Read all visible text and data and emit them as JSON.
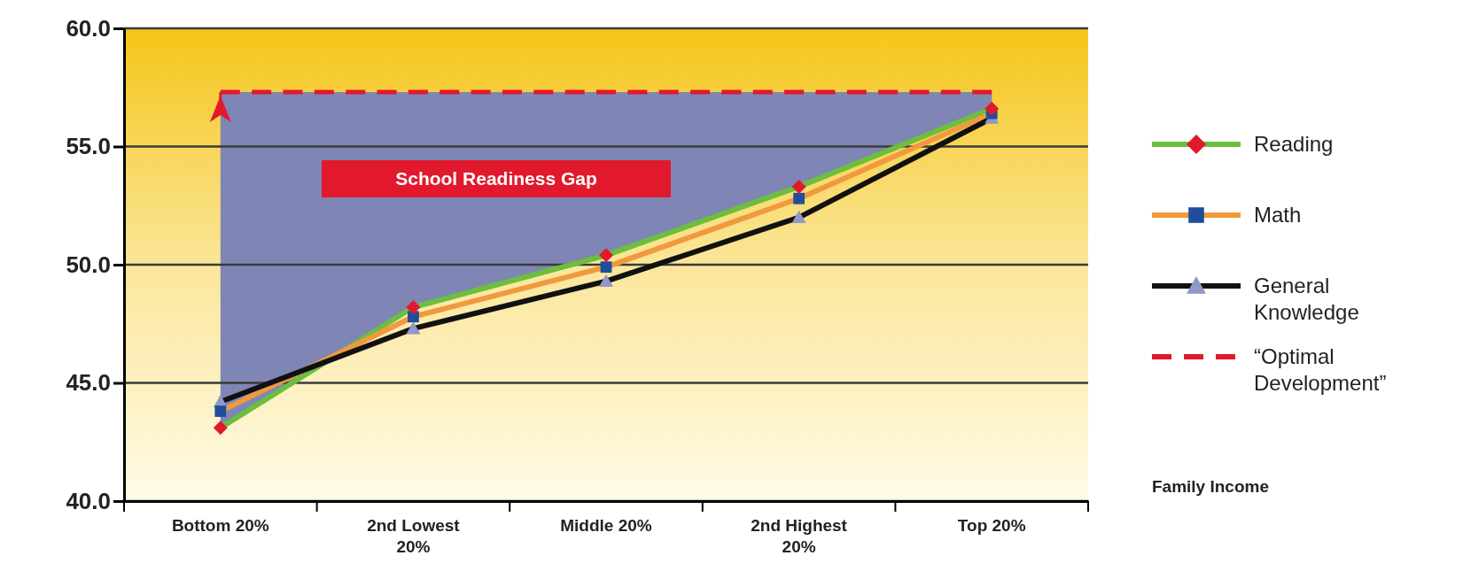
{
  "chart_data": {
    "type": "line",
    "xlabel": "Family Income",
    "categories": [
      "Bottom 20%",
      "2nd Lowest 20%",
      "Middle 20%",
      "2nd Highest 20%",
      "Top 20%"
    ],
    "series": [
      {
        "name": "Reading",
        "color": "#6cbf3c",
        "marker": "diamond",
        "colors": [
          "#e2192c",
          "#e2192c",
          "#e2192c",
          "#e2192c",
          "#e2192c"
        ],
        "values": [
          43.1,
          48.2,
          50.4,
          53.3,
          56.6
        ]
      },
      {
        "name": "Math",
        "color": "#f0993e",
        "marker": "square",
        "colors": [
          "#1f4e9c",
          "#1f4e9c",
          "#1f4e9c",
          "#1f4e9c",
          "#1f4e9c"
        ],
        "values": [
          43.8,
          47.8,
          49.9,
          52.8,
          56.4
        ]
      },
      {
        "name": "General Knowledge",
        "color": "#111111",
        "marker": "triangle",
        "colors": [
          "#9097c9",
          "#9097c9",
          "#9097c9",
          "#9097c9",
          "#9097c9"
        ],
        "values": [
          44.2,
          47.3,
          49.3,
          52.0,
          56.2
        ]
      },
      {
        "name": "“Optimal Development”",
        "color": "#e2192c",
        "marker": "none",
        "line_style": "dashed",
        "values": [
          57.3,
          57.3,
          57.3,
          57.3,
          57.3
        ],
        "lower": [
          43.1,
          48.2,
          50.4,
          53.3,
          56.6
        ],
        "upper": [
          57.3,
          57.3,
          57.3,
          57.3,
          57.3
        ]
      }
    ],
    "annotations": [
      "School Readiness Gap"
    ],
    "ylim": [
      40,
      60
    ],
    "yticks": [
      {
        "value": 40,
        "label": "40.0"
      },
      {
        "value": 45,
        "label": "45.0"
      },
      {
        "value": 50,
        "label": "50.0"
      },
      {
        "value": 55,
        "label": "55.0"
      },
      {
        "value": 60,
        "label": "60.0"
      }
    ],
    "grid": "y",
    "legend": "right"
  }
}
